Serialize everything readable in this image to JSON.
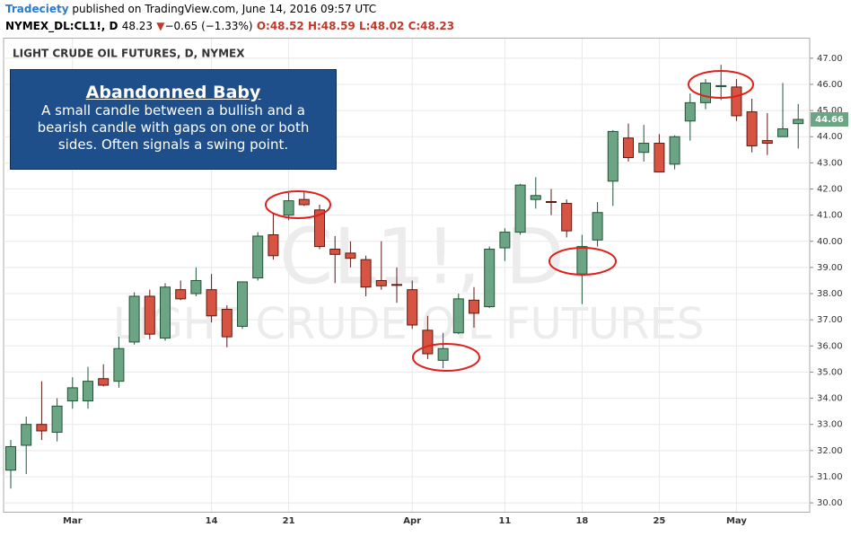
{
  "header": {
    "publisher": "Tradeciety",
    "published": "published on TradingView.com, June 14, 2016 09:57 UTC"
  },
  "symbol_bar": {
    "symbol": "NYMEX_DL:CL1!, D",
    "last": "48.23",
    "arrow": "▼",
    "change": "−0.65 (−1.33%)",
    "open": "O:48.52",
    "high": "H:48.59",
    "low": "L:48.02",
    "close": "C:48.23"
  },
  "annotation": {
    "title": "Abandonned Baby",
    "text": "A small candle between a bullish and a bearish candle with gaps on one or both sides. Often signals a swing point."
  },
  "chart_data": {
    "type": "candlestick",
    "title": "LIGHT CRUDE OIL FUTURES, D, NYMEX",
    "watermark_symbol": "CL1!, D",
    "watermark_name": "LIGHT CRUDE OIL FUTURES",
    "categories": [
      null,
      null,
      null,
      null,
      "Mar",
      null,
      null,
      null,
      null,
      null,
      null,
      null,
      null,
      "14",
      null,
      null,
      null,
      null,
      "21",
      null,
      null,
      null,
      null,
      null,
      null,
      null,
      "Apr",
      null,
      null,
      null,
      null,
      null,
      "11",
      null,
      null,
      null,
      null,
      "18",
      null,
      null,
      null,
      null,
      "25",
      null,
      null,
      null,
      null,
      "May",
      null,
      null,
      null,
      null
    ],
    "open": [
      31.25,
      32.2,
      33.0,
      32.7,
      33.9,
      33.9,
      34.75,
      34.65,
      36.15,
      37.9,
      36.3,
      38.15,
      38.0,
      38.15,
      37.4,
      36.75,
      38.6,
      40.25,
      41.0,
      41.6,
      41.2,
      39.7,
      39.55,
      39.3,
      38.5,
      38.35,
      38.15,
      36.6,
      35.45,
      36.5,
      37.75,
      37.5,
      39.75,
      40.35,
      41.6,
      41.52,
      41.45,
      38.75,
      40.05,
      42.3,
      43.95,
      43.4,
      43.75,
      42.95,
      44.6,
      45.3,
      45.93,
      45.9,
      44.95,
      43.85,
      44.0,
      44.5
    ],
    "high": [
      32.4,
      33.3,
      34.65,
      34.0,
      34.8,
      35.2,
      35.3,
      36.35,
      38.05,
      38.15,
      38.4,
      38.5,
      39.0,
      38.75,
      37.55,
      38.45,
      40.35,
      41.1,
      41.85,
      41.9,
      41.4,
      40.2,
      40.0,
      39.45,
      40.0,
      39.0,
      38.5,
      37.15,
      36.5,
      38.0,
      38.25,
      39.8,
      40.5,
      42.2,
      42.45,
      42.0,
      41.6,
      40.25,
      41.5,
      44.25,
      44.5,
      44.45,
      44.1,
      44.05,
      45.65,
      46.2,
      46.75,
      46.2,
      45.45,
      44.9,
      46.05,
      45.25
    ],
    "low": [
      30.55,
      31.1,
      32.4,
      32.35,
      33.6,
      33.6,
      34.45,
      34.4,
      36.05,
      36.25,
      36.2,
      37.75,
      37.9,
      36.9,
      35.95,
      36.65,
      38.5,
      39.3,
      40.8,
      41.35,
      39.7,
      38.4,
      39.0,
      37.9,
      38.15,
      37.65,
      36.65,
      35.5,
      35.15,
      36.45,
      36.7,
      37.45,
      39.25,
      40.25,
      41.25,
      41.0,
      40.15,
      37.6,
      39.8,
      41.35,
      43.05,
      43.05,
      42.65,
      42.75,
      43.85,
      45.05,
      45.4,
      44.6,
      43.4,
      43.3,
      44.0,
      43.55
    ],
    "close": [
      32.15,
      33.0,
      32.75,
      33.7,
      34.4,
      34.65,
      34.5,
      35.9,
      37.9,
      36.45,
      38.25,
      37.8,
      38.5,
      37.15,
      36.35,
      38.45,
      40.2,
      39.45,
      41.55,
      41.4,
      39.8,
      39.5,
      39.35,
      38.25,
      38.3,
      38.34,
      36.8,
      35.7,
      35.9,
      37.8,
      37.25,
      39.7,
      40.35,
      42.15,
      41.75,
      41.5,
      40.4,
      39.8,
      41.1,
      44.2,
      43.2,
      43.75,
      42.65,
      44.0,
      45.3,
      46.05,
      45.95,
      44.8,
      43.65,
      43.75,
      44.3,
      44.66
    ],
    "up_color": "#6ba583",
    "down_color": "#d75442",
    "up_border": "#225437",
    "down_border": "#5b1a13",
    "ylim": [
      29.66,
      47.75
    ],
    "yticks": [
      {
        "value": 30,
        "label": "30.00"
      },
      {
        "value": 31,
        "label": "31.00"
      },
      {
        "value": 32,
        "label": "32.00"
      },
      {
        "value": 33,
        "label": "33.00"
      },
      {
        "value": 34,
        "label": "34.00"
      },
      {
        "value": 35,
        "label": "35.00"
      },
      {
        "value": 36,
        "label": "36.00"
      },
      {
        "value": 37,
        "label": "37.00"
      },
      {
        "value": 38,
        "label": "38.00"
      },
      {
        "value": 39,
        "label": "39.00"
      },
      {
        "value": 40,
        "label": "40.00"
      },
      {
        "value": 41,
        "label": "41.00"
      },
      {
        "value": 42,
        "label": "42.00"
      },
      {
        "value": 43,
        "label": "43.00"
      },
      {
        "value": 44,
        "label": "44.00"
      },
      {
        "value": 45,
        "label": "45.00"
      },
      {
        "value": 46,
        "label": "46.00"
      },
      {
        "value": 47,
        "label": "47.00"
      }
    ],
    "grid": true
  }
}
